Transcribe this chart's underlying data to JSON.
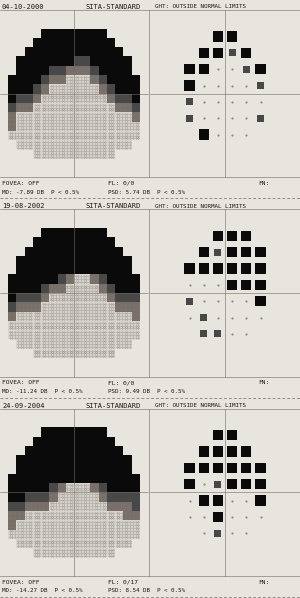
{
  "panels": [
    {
      "date": "04-10-2000",
      "subtitle": "SITA-STANDARD",
      "ght": "GHT: OUTSIDE NORMAL LIMITS",
      "footer1": "FOVEA: OFF",
      "footer2": "FL: 0/0",
      "footer3": "FN:",
      "footer4": "MD: -7.89 DB  P < 0.5%",
      "footer5": "PSD: 5.74 DB  P < 0.5%",
      "idx": 0
    },
    {
      "date": "19-08-2002",
      "subtitle": "SITA-STANDARD",
      "ght": "GHT: OUTSIDE NORMAL LIMITS",
      "footer1": "FOVEA: OFF",
      "footer2": "FL: 0/0",
      "footer3": "FN:",
      "footer4": "MD: -11.24 DB  P < 0.5%",
      "footer5": "PSD: 9.49 DB  P < 0.5%",
      "idx": 1
    },
    {
      "date": "24-09-2004",
      "subtitle": "SITA-STANDARD",
      "ght": "GHT: OUTSIDE NORMAL LIMITS",
      "footer1": "FOVEA: OFF",
      "footer2": "FL: 0/17",
      "footer3": "FN:",
      "footer4": "MD: -14.27 DB  P < 0.5%",
      "footer5": "PSD: 8.54 DB  P < 0.5%",
      "idx": 2
    }
  ],
  "bg_color": "#e8e4de",
  "field_bg": "#e8e4de",
  "colors": {
    "black": "#0a0a0a",
    "dark_gray": "#484848",
    "mid_gray": "#787068",
    "light_gray": "#a8a098",
    "bg": "#d8d4ce",
    "dot": "#807870",
    "line": "#706860",
    "text": "#181818"
  },
  "field_maps": [
    [
      [
        9,
        9,
        9,
        9,
        9,
        9,
        9,
        9,
        9,
        9,
        9,
        9,
        9,
        9,
        9,
        9,
        9,
        9
      ],
      [
        9,
        9,
        9,
        9,
        9,
        9,
        9,
        9,
        9,
        9,
        9,
        9,
        9,
        9,
        9,
        9,
        9,
        9
      ],
      [
        9,
        9,
        9,
        9,
        9,
        3,
        3,
        3,
        3,
        3,
        3,
        3,
        3,
        9,
        9,
        9,
        9,
        9
      ],
      [
        9,
        9,
        9,
        9,
        3,
        3,
        3,
        3,
        3,
        3,
        3,
        3,
        3,
        3,
        9,
        9,
        9,
        9
      ],
      [
        9,
        9,
        9,
        3,
        3,
        3,
        3,
        3,
        3,
        3,
        3,
        3,
        3,
        3,
        3,
        9,
        9,
        9
      ],
      [
        9,
        9,
        3,
        3,
        3,
        3,
        3,
        3,
        3,
        2,
        2,
        3,
        3,
        3,
        3,
        3,
        9,
        9
      ],
      [
        9,
        9,
        3,
        3,
        3,
        3,
        2,
        2,
        1,
        1,
        1,
        2,
        3,
        3,
        3,
        3,
        9,
        9
      ],
      [
        9,
        3,
        3,
        3,
        3,
        2,
        1,
        1,
        0,
        0,
        0,
        1,
        2,
        3,
        3,
        3,
        3,
        9
      ],
      [
        9,
        3,
        3,
        3,
        2,
        1,
        0,
        0,
        0,
        0,
        0,
        0,
        1,
        2,
        3,
        3,
        3,
        9
      ],
      [
        9,
        3,
        2,
        2,
        1,
        0,
        0,
        0,
        0,
        0,
        0,
        0,
        0,
        1,
        2,
        2,
        3,
        9
      ],
      [
        9,
        2,
        1,
        1,
        0,
        0,
        0,
        0,
        0,
        0,
        0,
        0,
        0,
        0,
        1,
        1,
        2,
        9
      ],
      [
        9,
        1,
        0,
        0,
        0,
        0,
        0,
        0,
        0,
        0,
        0,
        0,
        0,
        0,
        0,
        0,
        1,
        9
      ],
      [
        9,
        1,
        0,
        0,
        0,
        0,
        0,
        0,
        0,
        0,
        0,
        0,
        0,
        0,
        0,
        0,
        0,
        9
      ],
      [
        9,
        0,
        0,
        0,
        0,
        0,
        0,
        0,
        0,
        0,
        0,
        0,
        0,
        0,
        0,
        0,
        0,
        9
      ],
      [
        9,
        9,
        0,
        0,
        0,
        0,
        0,
        0,
        0,
        0,
        0,
        0,
        0,
        0,
        0,
        0,
        9,
        9
      ],
      [
        9,
        9,
        9,
        9,
        0,
        0,
        0,
        0,
        0,
        0,
        0,
        0,
        0,
        0,
        9,
        9,
        9,
        9
      ],
      [
        9,
        9,
        9,
        9,
        9,
        9,
        9,
        9,
        9,
        9,
        9,
        9,
        9,
        9,
        9,
        9,
        9,
        9
      ],
      [
        9,
        9,
        9,
        9,
        9,
        9,
        9,
        9,
        9,
        9,
        9,
        9,
        9,
        9,
        9,
        9,
        9,
        9
      ]
    ],
    [
      [
        9,
        9,
        9,
        9,
        9,
        9,
        9,
        9,
        9,
        9,
        9,
        9,
        9,
        9,
        9,
        9,
        9,
        9
      ],
      [
        9,
        9,
        9,
        9,
        9,
        9,
        9,
        9,
        9,
        9,
        9,
        9,
        9,
        9,
        9,
        9,
        9,
        9
      ],
      [
        9,
        9,
        9,
        9,
        9,
        3,
        3,
        3,
        3,
        3,
        3,
        3,
        3,
        9,
        9,
        9,
        9,
        9
      ],
      [
        9,
        9,
        9,
        9,
        3,
        3,
        3,
        3,
        3,
        3,
        3,
        3,
        3,
        3,
        9,
        9,
        9,
        9
      ],
      [
        9,
        9,
        9,
        3,
        3,
        3,
        3,
        3,
        3,
        3,
        3,
        3,
        3,
        3,
        3,
        9,
        9,
        9
      ],
      [
        9,
        9,
        3,
        3,
        3,
        3,
        3,
        3,
        3,
        3,
        3,
        3,
        3,
        3,
        3,
        3,
        9,
        9
      ],
      [
        9,
        9,
        3,
        3,
        3,
        3,
        3,
        3,
        3,
        3,
        3,
        3,
        3,
        3,
        3,
        3,
        9,
        9
      ],
      [
        9,
        3,
        3,
        3,
        3,
        3,
        3,
        2,
        1,
        0,
        0,
        1,
        2,
        3,
        3,
        3,
        3,
        9
      ],
      [
        9,
        3,
        3,
        3,
        3,
        2,
        1,
        1,
        0,
        0,
        0,
        0,
        1,
        2,
        3,
        3,
        3,
        9
      ],
      [
        9,
        3,
        2,
        2,
        2,
        1,
        0,
        0,
        0,
        0,
        0,
        0,
        0,
        1,
        2,
        2,
        2,
        9
      ],
      [
        9,
        2,
        1,
        1,
        1,
        0,
        0,
        0,
        0,
        0,
        0,
        0,
        0,
        0,
        1,
        1,
        1,
        9
      ],
      [
        9,
        1,
        0,
        0,
        0,
        0,
        0,
        0,
        0,
        0,
        0,
        0,
        0,
        0,
        0,
        0,
        1,
        9
      ],
      [
        9,
        0,
        0,
        0,
        0,
        0,
        0,
        0,
        0,
        0,
        0,
        0,
        0,
        0,
        0,
        0,
        0,
        9
      ],
      [
        9,
        0,
        0,
        0,
        0,
        0,
        0,
        0,
        0,
        0,
        0,
        0,
        0,
        0,
        0,
        0,
        0,
        9
      ],
      [
        9,
        9,
        0,
        0,
        0,
        0,
        0,
        0,
        0,
        0,
        0,
        0,
        0,
        0,
        0,
        0,
        9,
        9
      ],
      [
        9,
        9,
        9,
        9,
        0,
        0,
        0,
        0,
        0,
        0,
        0,
        0,
        0,
        0,
        9,
        9,
        9,
        9
      ],
      [
        9,
        9,
        9,
        9,
        9,
        9,
        9,
        9,
        9,
        9,
        9,
        9,
        9,
        9,
        9,
        9,
        9,
        9
      ],
      [
        9,
        9,
        9,
        9,
        9,
        9,
        9,
        9,
        9,
        9,
        9,
        9,
        9,
        9,
        9,
        9,
        9,
        9
      ]
    ],
    [
      [
        9,
        9,
        9,
        9,
        9,
        9,
        9,
        9,
        9,
        9,
        9,
        9,
        9,
        9,
        9,
        9,
        9,
        9
      ],
      [
        9,
        9,
        9,
        9,
        9,
        9,
        9,
        9,
        9,
        9,
        9,
        9,
        9,
        9,
        9,
        9,
        9,
        9
      ],
      [
        9,
        9,
        9,
        9,
        9,
        3,
        3,
        3,
        3,
        3,
        3,
        3,
        3,
        9,
        9,
        9,
        9,
        9
      ],
      [
        9,
        9,
        9,
        9,
        3,
        3,
        3,
        3,
        3,
        3,
        3,
        3,
        3,
        3,
        9,
        9,
        9,
        9
      ],
      [
        9,
        9,
        9,
        3,
        3,
        3,
        3,
        3,
        3,
        3,
        3,
        3,
        3,
        3,
        3,
        9,
        9,
        9
      ],
      [
        9,
        9,
        3,
        3,
        3,
        3,
        3,
        3,
        3,
        3,
        3,
        3,
        3,
        3,
        3,
        3,
        9,
        9
      ],
      [
        9,
        9,
        3,
        3,
        3,
        3,
        3,
        3,
        3,
        3,
        3,
        3,
        3,
        3,
        3,
        3,
        9,
        9
      ],
      [
        9,
        3,
        3,
        3,
        3,
        3,
        3,
        3,
        3,
        3,
        3,
        3,
        3,
        3,
        3,
        3,
        3,
        9
      ],
      [
        9,
        3,
        3,
        3,
        3,
        3,
        2,
        1,
        0,
        0,
        0,
        1,
        2,
        3,
        3,
        3,
        3,
        9
      ],
      [
        9,
        3,
        3,
        2,
        2,
        2,
        1,
        0,
        0,
        0,
        0,
        0,
        1,
        2,
        2,
        2,
        2,
        9
      ],
      [
        9,
        2,
        2,
        1,
        1,
        1,
        0,
        0,
        0,
        0,
        0,
        0,
        0,
        1,
        1,
        1,
        2,
        9
      ],
      [
        9,
        1,
        1,
        0,
        0,
        0,
        0,
        0,
        0,
        0,
        0,
        0,
        0,
        0,
        0,
        1,
        1,
        9
      ],
      [
        9,
        1,
        0,
        0,
        0,
        0,
        0,
        0,
        0,
        0,
        0,
        0,
        0,
        0,
        0,
        0,
        0,
        9
      ],
      [
        9,
        0,
        0,
        0,
        0,
        0,
        0,
        0,
        0,
        0,
        0,
        0,
        0,
        0,
        0,
        0,
        0,
        9
      ],
      [
        9,
        9,
        0,
        0,
        0,
        0,
        0,
        0,
        0,
        0,
        0,
        0,
        0,
        0,
        0,
        0,
        9,
        9
      ],
      [
        9,
        9,
        9,
        9,
        0,
        0,
        0,
        0,
        0,
        0,
        0,
        0,
        0,
        0,
        9,
        9,
        9,
        9
      ],
      [
        9,
        9,
        9,
        9,
        9,
        9,
        9,
        9,
        9,
        9,
        9,
        9,
        9,
        9,
        9,
        9,
        9,
        9
      ],
      [
        9,
        9,
        9,
        9,
        9,
        9,
        9,
        9,
        9,
        9,
        9,
        9,
        9,
        9,
        9,
        9,
        9,
        9
      ]
    ]
  ],
  "dev_maps": [
    [
      [
        9,
        9,
        9,
        9,
        9,
        9,
        9,
        9,
        9,
        9
      ],
      [
        9,
        9,
        9,
        9,
        3,
        3,
        9,
        9,
        9,
        9
      ],
      [
        9,
        9,
        9,
        3,
        3,
        2,
        3,
        9,
        9,
        9
      ],
      [
        9,
        9,
        3,
        3,
        0,
        0,
        2,
        3,
        9,
        9
      ],
      [
        9,
        9,
        3,
        0,
        0,
        0,
        0,
        2,
        9,
        9
      ],
      [
        9,
        9,
        2,
        0,
        0,
        0,
        0,
        0,
        9,
        9
      ],
      [
        9,
        9,
        2,
        0,
        0,
        0,
        0,
        2,
        9,
        9
      ],
      [
        9,
        9,
        9,
        3,
        0,
        0,
        0,
        9,
        9,
        9
      ],
      [
        9,
        9,
        9,
        9,
        9,
        9,
        9,
        9,
        9,
        9
      ],
      [
        9,
        9,
        9,
        9,
        9,
        9,
        9,
        9,
        9,
        9
      ]
    ],
    [
      [
        9,
        9,
        9,
        9,
        9,
        9,
        9,
        9,
        9,
        9
      ],
      [
        9,
        9,
        9,
        9,
        3,
        3,
        3,
        9,
        9,
        9
      ],
      [
        9,
        9,
        9,
        3,
        2,
        3,
        3,
        3,
        9,
        9
      ],
      [
        9,
        9,
        3,
        3,
        3,
        3,
        3,
        3,
        9,
        9
      ],
      [
        9,
        9,
        0,
        0,
        0,
        3,
        3,
        3,
        9,
        9
      ],
      [
        9,
        9,
        2,
        0,
        0,
        0,
        0,
        3,
        9,
        9
      ],
      [
        9,
        9,
        0,
        2,
        0,
        0,
        0,
        0,
        9,
        9
      ],
      [
        9,
        9,
        9,
        2,
        2,
        0,
        0,
        9,
        9,
        9
      ],
      [
        9,
        9,
        9,
        9,
        9,
        9,
        9,
        9,
        9,
        9
      ],
      [
        9,
        9,
        9,
        9,
        9,
        9,
        9,
        9,
        9,
        9
      ]
    ],
    [
      [
        9,
        9,
        9,
        9,
        9,
        9,
        9,
        9,
        9,
        9
      ],
      [
        9,
        9,
        9,
        9,
        3,
        3,
        9,
        9,
        9,
        9
      ],
      [
        9,
        9,
        9,
        3,
        3,
        3,
        3,
        9,
        9,
        9
      ],
      [
        9,
        9,
        3,
        3,
        3,
        3,
        3,
        3,
        9,
        9
      ],
      [
        9,
        9,
        3,
        0,
        2,
        3,
        3,
        3,
        9,
        9
      ],
      [
        9,
        9,
        0,
        3,
        3,
        0,
        0,
        3,
        9,
        9
      ],
      [
        9,
        9,
        0,
        0,
        3,
        0,
        0,
        0,
        9,
        9
      ],
      [
        9,
        9,
        9,
        0,
        2,
        0,
        0,
        9,
        9,
        9
      ],
      [
        9,
        9,
        9,
        9,
        9,
        9,
        9,
        9,
        9,
        9
      ],
      [
        9,
        9,
        9,
        9,
        9,
        9,
        9,
        9,
        9,
        9
      ]
    ]
  ]
}
